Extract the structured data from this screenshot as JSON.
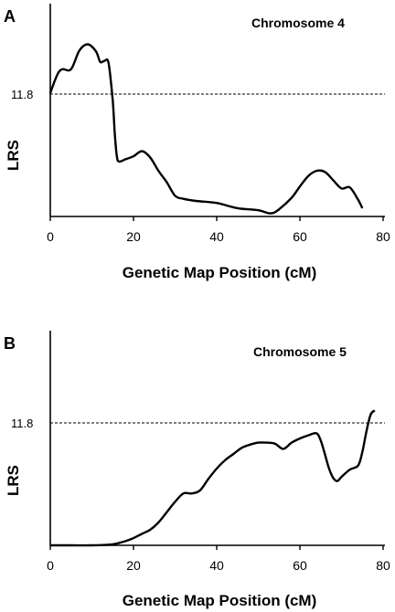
{
  "chart_data": [
    {
      "type": "line",
      "panel": "A",
      "annotation": "Chromosome 4",
      "xlabel": "Genetic Map Position (cM)",
      "ylabel": "LRS",
      "xlim": [
        0,
        80
      ],
      "xticks": [
        "0",
        "20",
        "40",
        "60",
        "80"
      ],
      "reference_line": {
        "label": "11.8",
        "value": 11.8,
        "style": "dashed"
      },
      "ylim": [
        0,
        22.5
      ],
      "grid": false,
      "x": [
        0,
        1,
        2,
        3,
        5,
        7,
        9,
        11,
        12,
        13,
        14,
        15,
        15.5,
        16,
        16.5,
        18,
        20,
        22,
        24,
        26,
        28,
        30,
        32,
        35,
        40,
        45,
        50,
        53,
        55,
        58,
        60,
        62,
        64,
        66,
        68,
        70,
        72,
        74,
        75
      ],
      "y": [
        11.9,
        13.0,
        13.9,
        14.2,
        14.2,
        16.0,
        16.6,
        15.9,
        14.9,
        15.0,
        14.8,
        11.2,
        8.0,
        5.8,
        5.3,
        5.5,
        5.8,
        6.3,
        5.7,
        4.4,
        3.3,
        2.0,
        1.7,
        1.5,
        1.3,
        0.8,
        0.6,
        0.3,
        0.7,
        1.8,
        2.9,
        3.9,
        4.4,
        4.3,
        3.5,
        2.7,
        2.8,
        1.6,
        0.8
      ]
    },
    {
      "type": "line",
      "panel": "B",
      "annotation": "Chromosome 5",
      "xlabel": "Genetic Map Position (cM)",
      "ylabel": "LRS",
      "xlim": [
        0,
        80
      ],
      "xticks": [
        "0",
        "20",
        "40",
        "60",
        "80"
      ],
      "reference_line": {
        "label": "11.8",
        "value": 11.8,
        "style": "dashed"
      },
      "ylim": [
        0,
        18.9
      ],
      "grid": false,
      "x": [
        0,
        5,
        10,
        15,
        18,
        20,
        22,
        24,
        26,
        28,
        30,
        32,
        34,
        36,
        38,
        40,
        42,
        44,
        46,
        48,
        50,
        52,
        54,
        56,
        58,
        60,
        62,
        64,
        65,
        66,
        67,
        68,
        69,
        70,
        72,
        74,
        75,
        76,
        77,
        78
      ],
      "y": [
        0,
        0,
        0,
        0.1,
        0.4,
        0.7,
        1.1,
        1.5,
        2.2,
        3.2,
        4.2,
        5.0,
        5.0,
        5.3,
        6.4,
        7.4,
        8.2,
        8.8,
        9.4,
        9.7,
        9.9,
        9.9,
        9.8,
        9.3,
        9.9,
        10.3,
        10.6,
        10.8,
        10.1,
        8.8,
        7.4,
        6.5,
        6.2,
        6.6,
        7.3,
        7.7,
        9.0,
        11.0,
        12.6,
        13.0
      ]
    }
  ]
}
